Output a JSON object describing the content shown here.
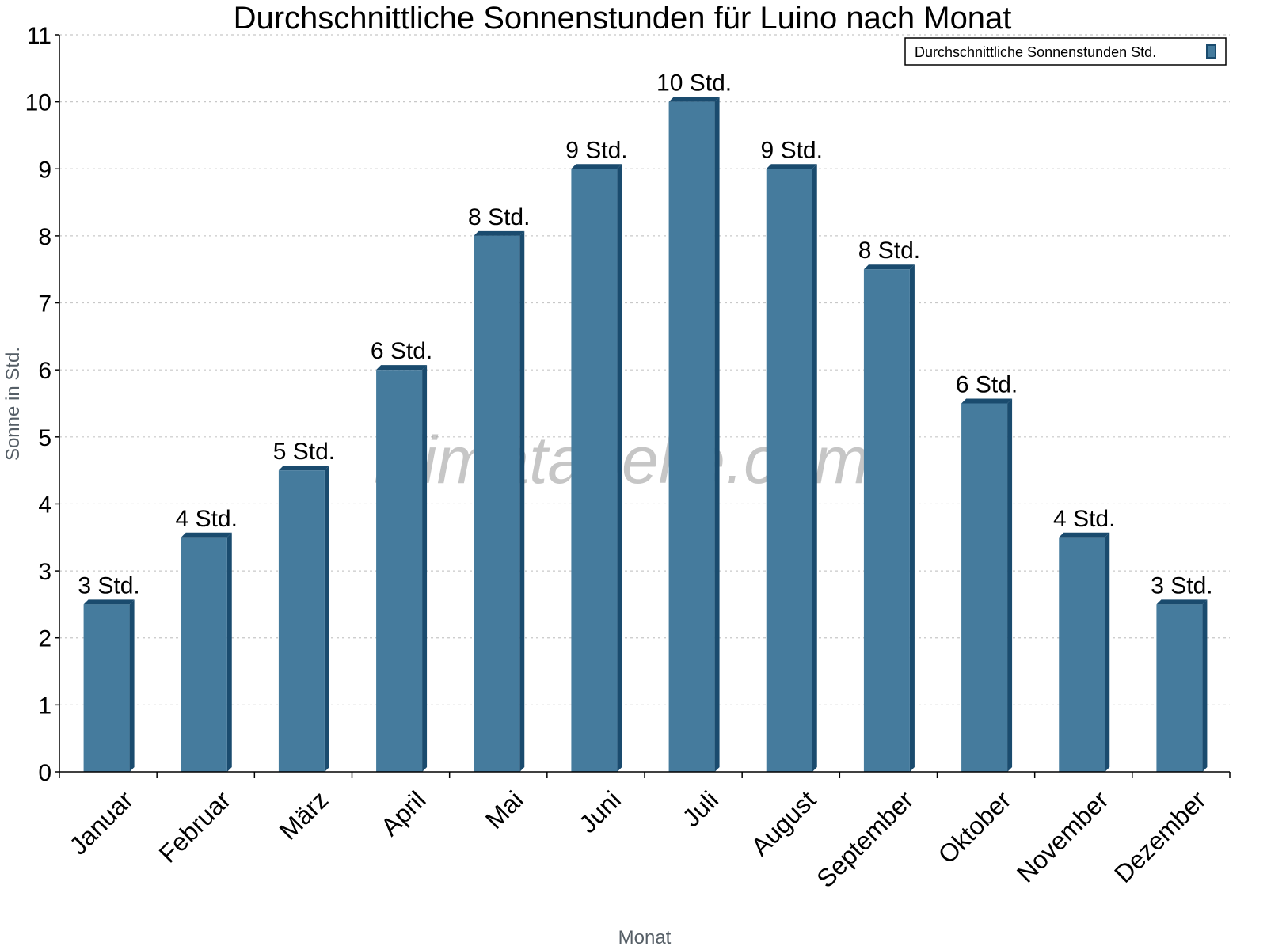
{
  "chart_data": {
    "type": "bar",
    "title": "Durchschnittliche Sonnenstunden für Luino nach Monat",
    "xlabel": "Monat",
    "ylabel": "Sonne in Std.",
    "ylim": [
      0,
      11
    ],
    "yticks": [
      0,
      1,
      2,
      3,
      4,
      5,
      6,
      7,
      8,
      9,
      10,
      11
    ],
    "grid": true,
    "legend_position": "top-right",
    "categories": [
      "Januar",
      "Februar",
      "März",
      "April",
      "Mai",
      "Juni",
      "Juli",
      "August",
      "September",
      "Oktober",
      "November",
      "Dezember"
    ],
    "series": [
      {
        "name": "Durchschnittliche Sonnenstunden Std.",
        "values": [
          2.5,
          3.5,
          4.5,
          6,
          8,
          9,
          10,
          9,
          7.5,
          5.5,
          3.5,
          2.5
        ],
        "labels": [
          "3 Std.",
          "4 Std.",
          "5 Std.",
          "6 Std.",
          "8 Std.",
          "9 Std.",
          "10 Std.",
          "9 Std.",
          "8 Std.",
          "6 Std.",
          "4 Std.",
          "3 Std."
        ]
      }
    ],
    "colors": {
      "bar": "#457b9d",
      "bar_side": "#1a4b6e",
      "grid": "#c8c8c8"
    },
    "watermark": "klimatabelle.com"
  }
}
